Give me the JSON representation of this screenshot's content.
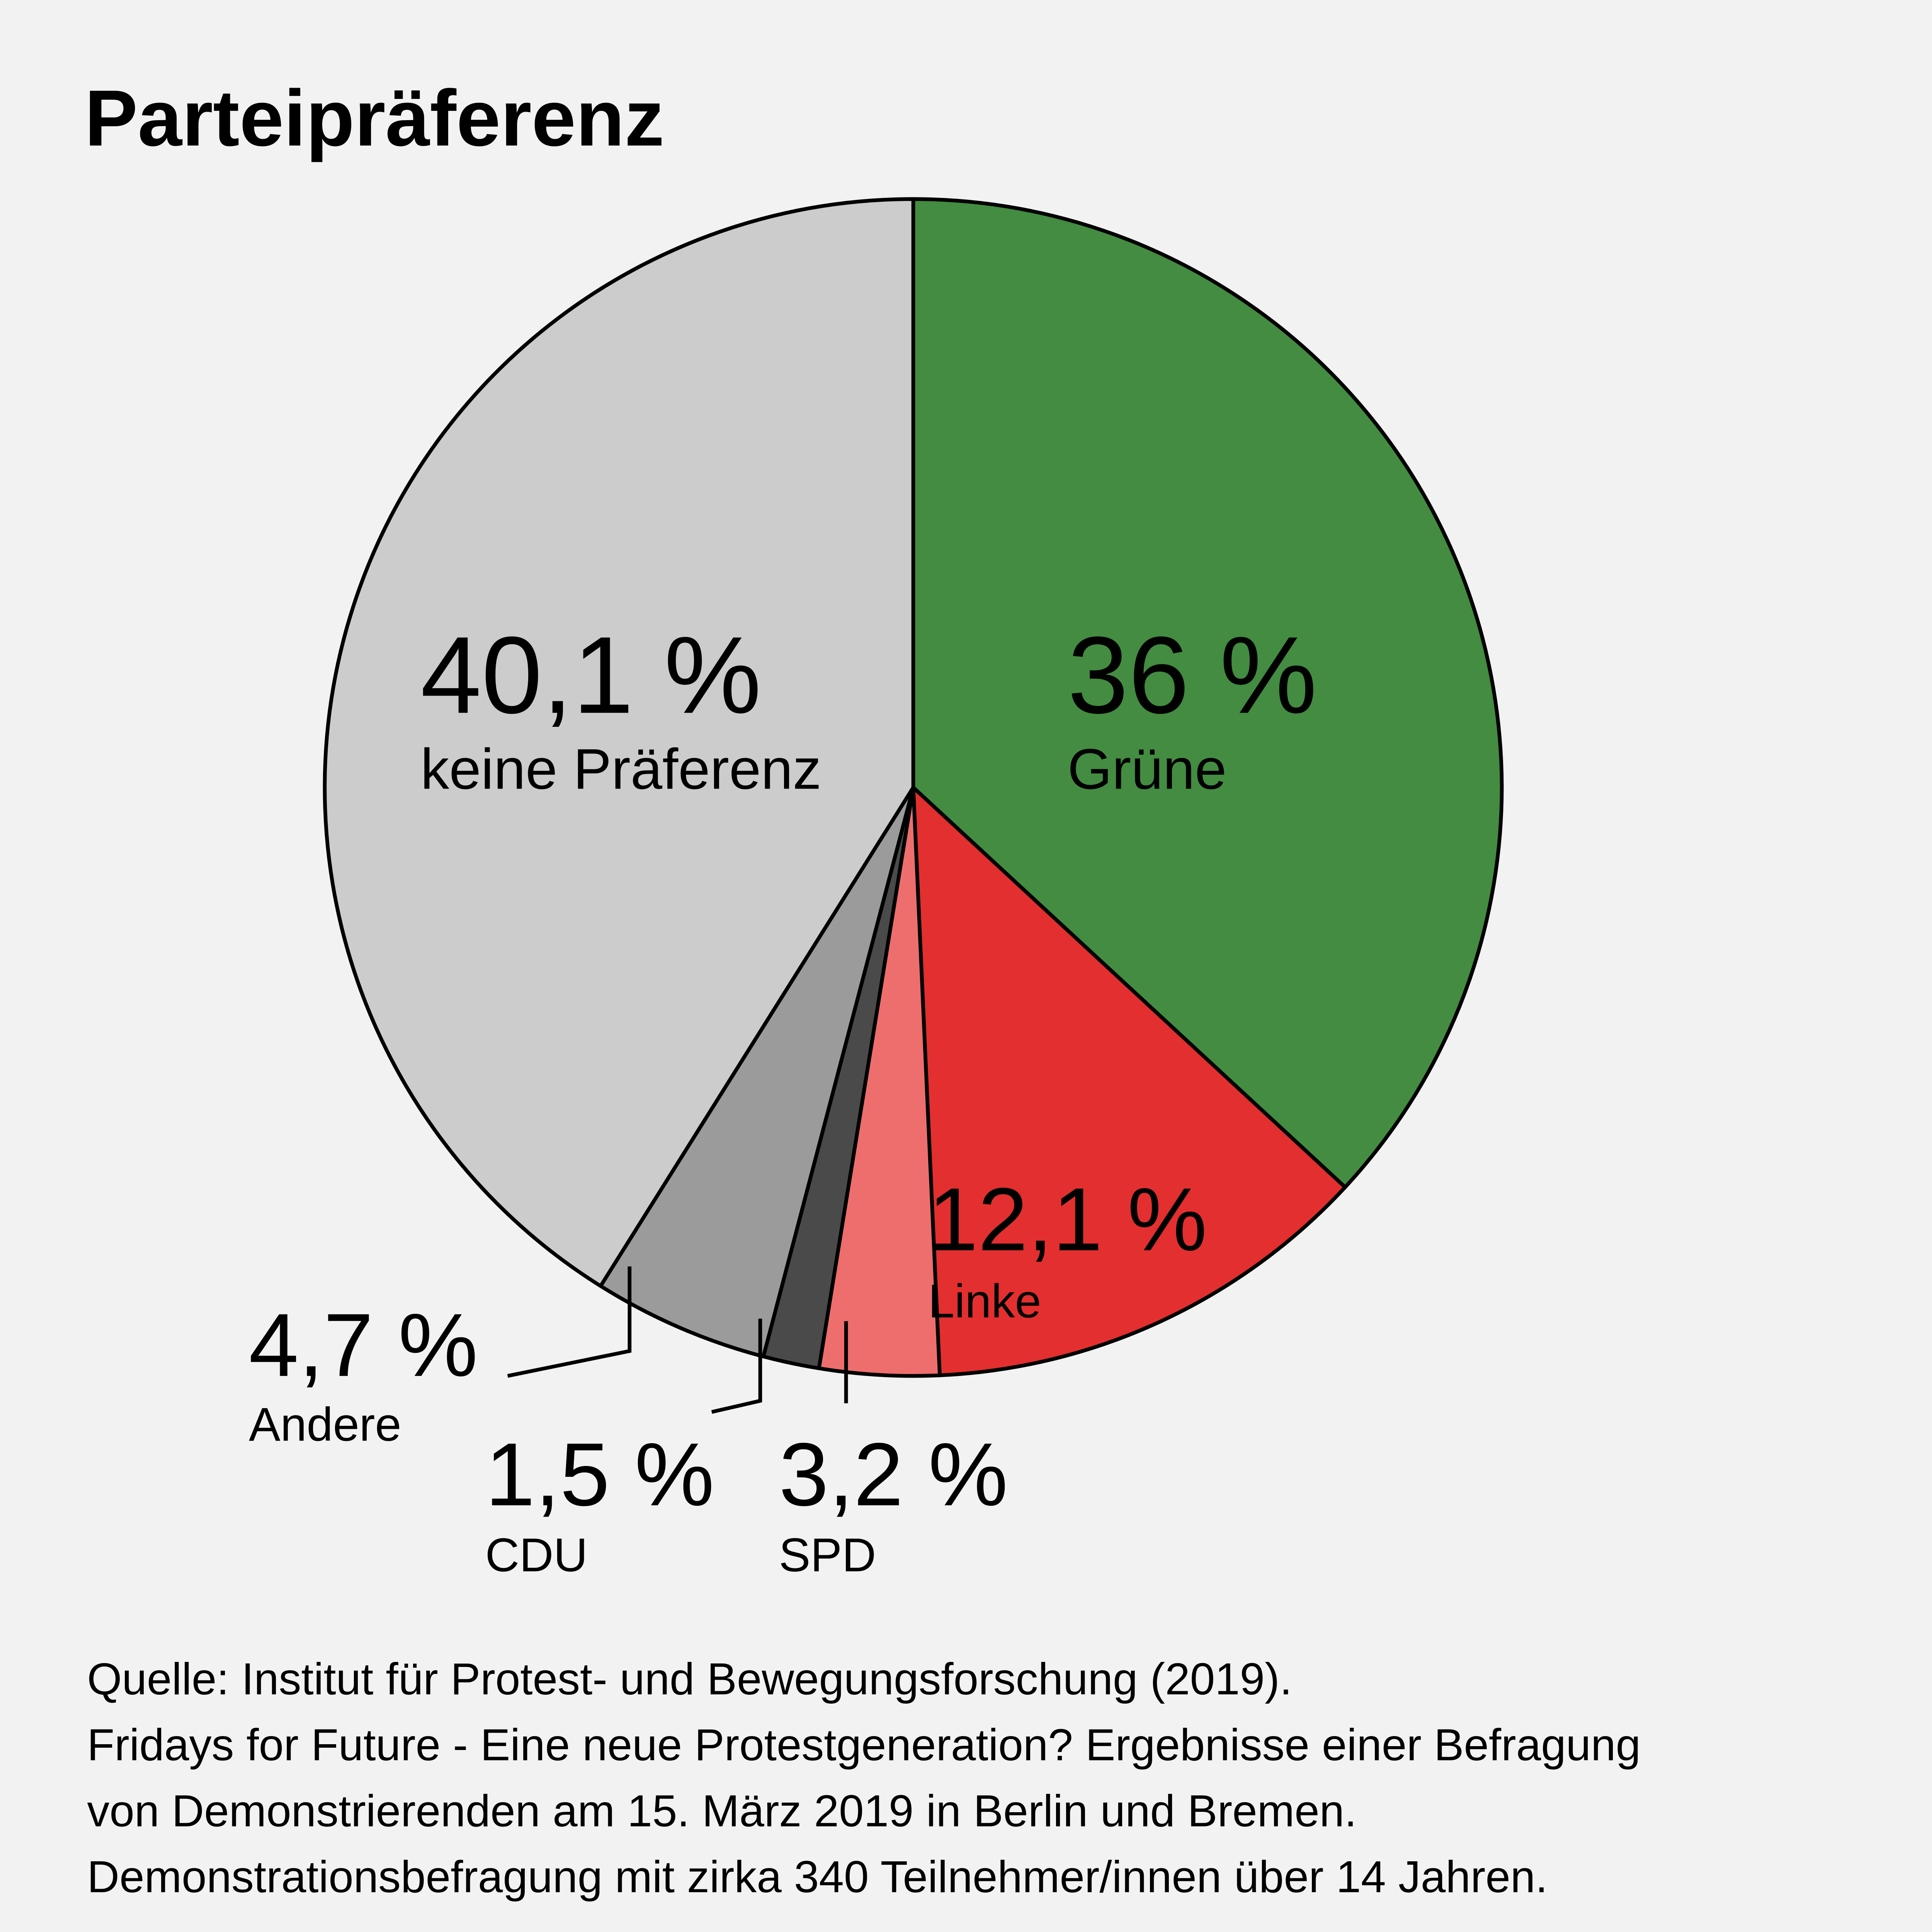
{
  "chart_data": {
    "type": "pie",
    "title": "Parteipräferenz",
    "slices": [
      {
        "label": "Grüne",
        "value": 36,
        "display": "36 %",
        "color": "#438c41"
      },
      {
        "label": "Linke",
        "value": 12.1,
        "display": "12,1 %",
        "color": "#e32f2f"
      },
      {
        "label": "SPD",
        "value": 3.2,
        "display": "3,2 %",
        "color": "#ee6e6e"
      },
      {
        "label": "CDU",
        "value": 1.5,
        "display": "1,5 %",
        "color": "#4a4a4a"
      },
      {
        "label": "Andere",
        "value": 4.7,
        "display": "4,7 %",
        "color": "#9b9b9b"
      },
      {
        "label": "keine Präferenz",
        "value": 40.1,
        "display": "40,1 %",
        "color": "#cccccc"
      }
    ],
    "source_lines": [
      "Quelle: Institut für Protest- und Bewegungsforschung (2019).",
      "Fridays for Future - Eine neue Protestgeneration? Ergebnisse einer Befragung",
      "von Demonstrierenden am 15. März 2019 in Berlin und Bremen.",
      "Demonstrationsbefragung mit zirka 340 Teilnehmer/innen über 14 Jahren."
    ]
  }
}
